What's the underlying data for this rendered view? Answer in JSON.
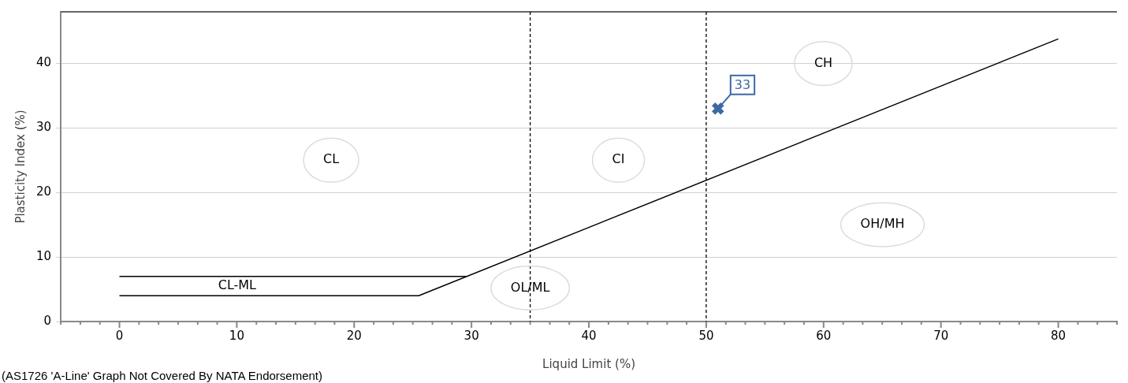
{
  "chart_data": {
    "type": "line",
    "xlabel": "Liquid Limit (%)",
    "ylabel": "Plasticity Index (%)",
    "xlim": [
      -5,
      85
    ],
    "ylim": [
      0,
      48
    ],
    "xticks": [
      {
        "value": -5,
        "label": null
      },
      {
        "value": -3.33,
        "label": null
      },
      {
        "value": -1.67,
        "label": null
      },
      0,
      {
        "value": 1.67,
        "label": null
      },
      {
        "value": 3.33,
        "label": null
      },
      {
        "value": 5,
        "label": null
      },
      {
        "value": 6.67,
        "label": null
      },
      {
        "value": 8.33,
        "label": null
      },
      10,
      {
        "value": 11.67,
        "label": null
      },
      {
        "value": 13.33,
        "label": null
      },
      {
        "value": 15,
        "label": null
      },
      {
        "value": 16.67,
        "label": null
      },
      {
        "value": 18.33,
        "label": null
      },
      20,
      {
        "value": 21.67,
        "label": null
      },
      {
        "value": 23.33,
        "label": null
      },
      {
        "value": 25,
        "label": null
      },
      {
        "value": 26.67,
        "label": null
      },
      {
        "value": 28.33,
        "label": null
      },
      30,
      {
        "value": 31.67,
        "label": null
      },
      {
        "value": 33.33,
        "label": null
      },
      {
        "value": 35,
        "label": null
      },
      {
        "value": 36.67,
        "label": null
      },
      {
        "value": 38.33,
        "label": null
      },
      40,
      {
        "value": 41.67,
        "label": null
      },
      {
        "value": 43.33,
        "label": null
      },
      {
        "value": 45,
        "label": null
      },
      {
        "value": 46.67,
        "label": null
      },
      {
        "value": 48.33,
        "label": null
      },
      50,
      {
        "value": 51.67,
        "label": null
      },
      {
        "value": 53.33,
        "label": null
      },
      {
        "value": 55,
        "label": null
      },
      {
        "value": 56.67,
        "label": null
      },
      {
        "value": 58.33,
        "label": null
      },
      60,
      {
        "value": 61.67,
        "label": null
      },
      {
        "value": 63.33,
        "label": null
      },
      {
        "value": 65,
        "label": null
      },
      {
        "value": 66.67,
        "label": null
      },
      {
        "value": 68.33,
        "label": null
      },
      70,
      {
        "value": 71.67,
        "label": null
      },
      {
        "value": 73.33,
        "label": null
      },
      {
        "value": 75,
        "label": null
      },
      {
        "value": 76.67,
        "label": null
      },
      {
        "value": 78.33,
        "label": null
      },
      80,
      {
        "value": 81.67,
        "label": null
      },
      {
        "value": 83.33,
        "label": null
      },
      {
        "value": 85,
        "label": null
      }
    ],
    "yticks": [
      0,
      10,
      20,
      30,
      40
    ],
    "grid": "y",
    "legend": false,
    "series": [
      {
        "type": "line",
        "color": "#000000",
        "marker": "none",
        "x": [
          0,
          25.5,
          80
        ],
        "values": [
          4,
          4,
          43.8
        ]
      },
      {
        "type": "line",
        "color": "#000000",
        "marker": "none",
        "x": [
          0,
          29.6
        ],
        "values": [
          7,
          7
        ]
      },
      {
        "type": "scatter",
        "color": "#3d6aa5",
        "marker": "cross",
        "x": [
          51
        ],
        "values": [
          33
        ],
        "value_labels": [
          "33"
        ]
      }
    ],
    "ref_lines": [
      {
        "axis": "x",
        "value": 35,
        "color": "#000000",
        "line_style": "dashed"
      },
      {
        "axis": "x",
        "value": 50,
        "color": "#000000",
        "line_style": "dashed"
      }
    ],
    "annotations": [
      "CL",
      "CI",
      "CH",
      "OH/MH",
      {
        "text": "OL/ML",
        "x": 35,
        "y": 5.2
      },
      "CL-ML",
      "(AS1726 'A-Line' Graph Not Covered By NATA Endorsement)"
    ]
  }
}
